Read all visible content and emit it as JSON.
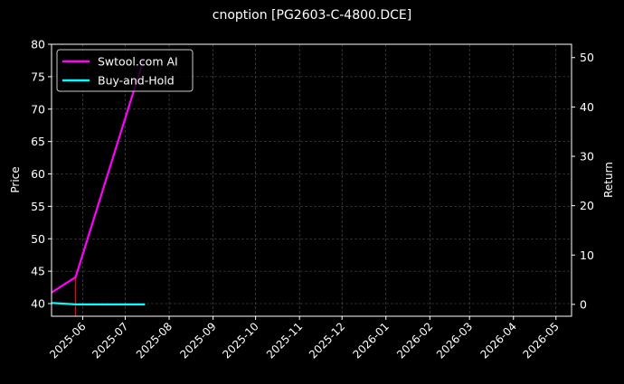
{
  "chart_data": {
    "type": "line",
    "title": "cnoption [PG2603-C-4800.DCE]",
    "ylabel_left": "Price",
    "ylabel_right": "Return",
    "xlim": [
      "2025-05-10",
      "2026-05-12"
    ],
    "ylim_left": [
      38.05,
      80
    ],
    "ylim_right": [
      -2.4,
      52.7
    ],
    "grid": true,
    "legend_position": "top-left",
    "x_ticks": [
      "2025-06",
      "2025-07",
      "2025-08",
      "2025-09",
      "2025-10",
      "2025-11",
      "2025-12",
      "2026-01",
      "2026-02",
      "2026-03",
      "2026-04",
      "2026-05"
    ],
    "y_ticks_left": [
      40,
      45,
      50,
      55,
      60,
      65,
      70,
      75,
      80
    ],
    "y_ticks_right": [
      0,
      10,
      20,
      30,
      40,
      50
    ],
    "series": [
      {
        "name": "Swtool.com AI",
        "axis": "right",
        "color": "#ff00ff",
        "x": [
          "2025-05-10",
          "2025-05-27",
          "2025-07-14"
        ],
        "y": [
          2.4,
          5.5,
          49.6
        ]
      },
      {
        "name": "Buy-and-Hold",
        "axis": "right",
        "color": "#00ffff",
        "x": [
          "2025-05-10",
          "2025-05-27",
          "2025-07-15"
        ],
        "y": [
          0.3,
          0.0,
          0.0
        ]
      }
    ],
    "vlines": [
      {
        "x": "2025-05-27",
        "from_right": 5.5,
        "color": "#ff0000"
      }
    ]
  }
}
